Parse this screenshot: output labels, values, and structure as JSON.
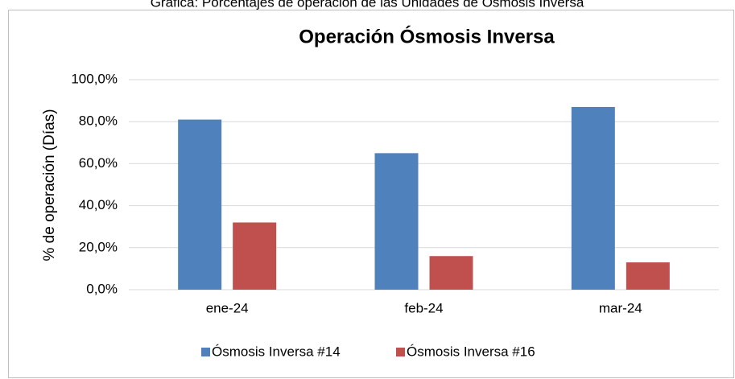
{
  "caption": "Gráfica: Porcentajes de operación de las Unidades de Ósmosis Inversa",
  "chart_data": {
    "type": "bar",
    "title": "Operación Ósmosis Inversa",
    "y_label": "% de operación (Días)",
    "categories": [
      "ene-24",
      "feb-24",
      "mar-24"
    ],
    "series": [
      {
        "name": "Ósmosis Inversa #14",
        "color": "#4f81bd",
        "values": [
          81,
          65,
          87
        ]
      },
      {
        "name": "Ósmosis Inversa #16",
        "color": "#c0504d",
        "values": [
          32,
          16,
          13
        ]
      }
    ],
    "ylim": [
      0,
      100
    ],
    "yticks": [
      {
        "value": 0,
        "label": "0,0%"
      },
      {
        "value": 20,
        "label": "20,0%"
      },
      {
        "value": 40,
        "label": "40,0%"
      },
      {
        "value": 60,
        "label": "60,0%"
      },
      {
        "value": 80,
        "label": "80,0%"
      },
      {
        "value": 100,
        "label": "100,0%"
      }
    ],
    "grid": true,
    "legend": "bottom"
  }
}
